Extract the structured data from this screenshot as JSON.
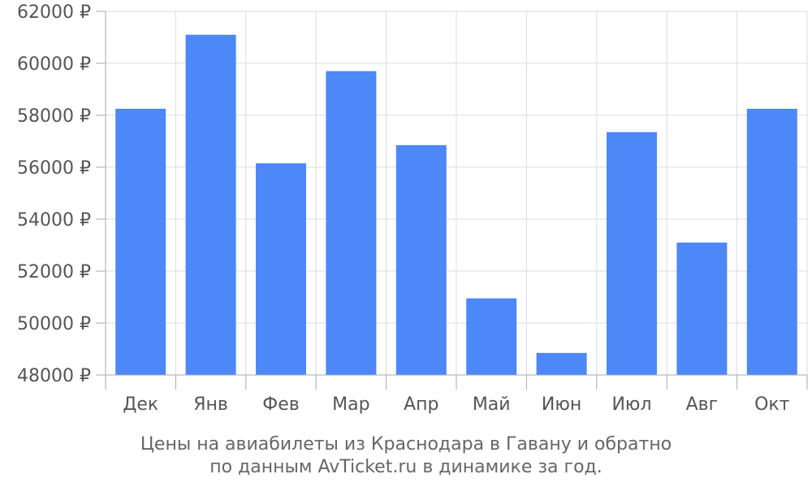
{
  "chart_data": {
    "type": "bar",
    "categories": [
      "Дек",
      "Янв",
      "Фев",
      "Мар",
      "Апр",
      "Май",
      "Июн",
      "Июл",
      "Авг",
      "Окт"
    ],
    "values": [
      58250,
      61100,
      56150,
      59700,
      56850,
      50950,
      48850,
      57350,
      53100,
      58250
    ],
    "ylim": [
      48000,
      62000
    ],
    "yticks": [
      48000,
      50000,
      52000,
      54000,
      56000,
      58000,
      60000,
      62000
    ],
    "y_tick_suffix": " ₽",
    "grid": true,
    "bar_color": "#4d88f9",
    "caption_line1": "Цены на авиабилеты из Краснодара в Гавану и обратно",
    "caption_line2": "по данным AvTicket.ru в динамике за год."
  }
}
